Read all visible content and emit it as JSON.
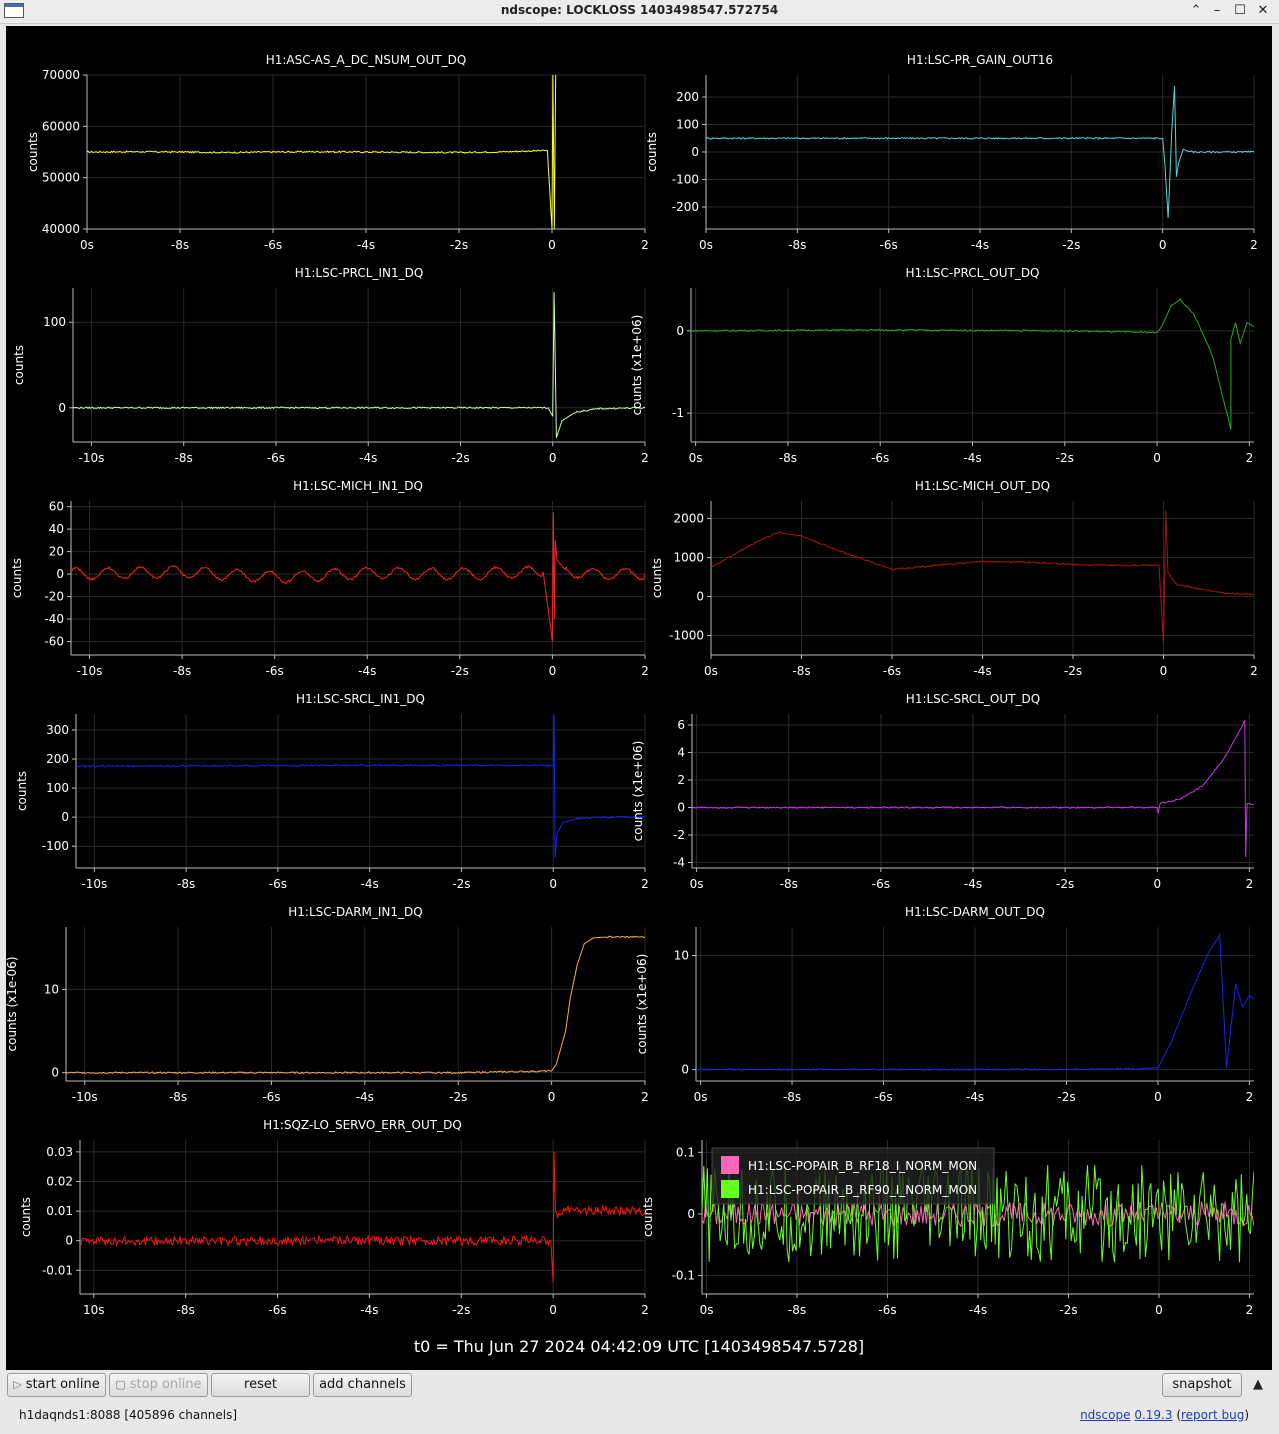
{
  "window": {
    "title": "ndscope: LOCKLOSS 1403498547.572754"
  },
  "t0_label": "t0 = Thu Jun 27 2024 04:42:09 UTC [1403498547.5728]",
  "buttons": {
    "start_online": "start online",
    "stop_online": "stop online",
    "reset": "reset",
    "add_channels": "add channels",
    "snapshot": "snapshot"
  },
  "status": {
    "server": "h1daqnds1:8088  [405896 channels]",
    "app": "ndscope",
    "version": "0.19.3",
    "bug_open": " (",
    "bug": "report bug",
    "bug_close": ")"
  },
  "chart_data": [
    {
      "type": "line",
      "title": "H1:ASC-AS_A_DC_NSUM_OUT_DQ",
      "ylabel": "counts",
      "xlim": [
        -10,
        2
      ],
      "ylim": [
        40000,
        70000
      ],
      "yticks": [
        40000,
        50000,
        60000,
        70000
      ],
      "xticks": [
        "0s",
        "-8s",
        "-6s",
        "-4s",
        "-2s",
        "0",
        "2"
      ],
      "color": "#ffff33",
      "series": [
        {
          "x": [
            -10,
            -9,
            -8,
            -7,
            -6,
            -5,
            -4,
            -3,
            -2,
            -1,
            -0.1,
            0,
            0.02,
            0.05,
            0.08
          ],
          "y": [
            55000,
            55050,
            55000,
            54900,
            55000,
            55050,
            55000,
            54950,
            54900,
            55050,
            55300,
            40000,
            70000,
            40000,
            70000
          ]
        }
      ]
    },
    {
      "type": "line",
      "title": "H1:LSC-PR_GAIN_OUT16",
      "ylabel": "counts",
      "xlim": [
        -10,
        2
      ],
      "ylim": [
        -280,
        280
      ],
      "yticks": [
        -200,
        -100,
        0,
        100,
        200
      ],
      "xticks": [
        "0s",
        "-8s",
        "-6s",
        "-4s",
        "-2s",
        "0",
        "2"
      ],
      "color": "#4fd6dc",
      "series": [
        {
          "x": [
            -10,
            -1,
            0,
            0.05,
            0.12,
            0.2,
            0.26,
            0.3,
            0.35,
            0.45,
            0.6,
            0.9,
            2
          ],
          "y": [
            50,
            50,
            50,
            -50,
            -240,
            80,
            240,
            -90,
            -40,
            10,
            0,
            0,
            0
          ]
        }
      ]
    },
    {
      "type": "line",
      "title": "H1:LSC-PRCL_IN1_DQ",
      "ylabel": "counts",
      "xlim": [
        -10.4,
        2
      ],
      "ylim": [
        -40,
        140
      ],
      "yticks": [
        0,
        100
      ],
      "xticks": [
        "-10s",
        "-8s",
        "-6s",
        "-4s",
        "-2s",
        "0",
        "2"
      ],
      "color": "#c8ffb0",
      "series": [
        {
          "x": [
            -10.4,
            -5,
            -0.1,
            0,
            0.03,
            0.08,
            0.2,
            0.5,
            1,
            2
          ],
          "y": [
            0,
            0,
            0,
            -10,
            135,
            -35,
            -15,
            -5,
            -1,
            0
          ]
        }
      ]
    },
    {
      "type": "line",
      "title": "H1:LSC-PRCL_OUT_DQ",
      "ylabel": "counts (x1e+06)",
      "xlim": [
        -10.1,
        2.1
      ],
      "ylim": [
        -1.35,
        0.52
      ],
      "yticks": [
        -1,
        0
      ],
      "xticks": [
        "0s",
        "-8s",
        "-6s",
        "-4s",
        "-2s",
        "0",
        "2"
      ],
      "color": "#22aa22",
      "series": [
        {
          "x": [
            -10.1,
            -6,
            -2,
            0,
            0.1,
            0.3,
            0.5,
            0.8,
            1.2,
            1.6,
            1.6,
            1.7,
            1.8,
            1.95,
            2.1
          ],
          "y": [
            0,
            0.01,
            0,
            -0.02,
            0.05,
            0.3,
            0.38,
            0.2,
            -0.3,
            -1.2,
            -0.1,
            0.1,
            -0.15,
            0.1,
            0.05
          ]
        }
      ]
    },
    {
      "type": "line",
      "title": "H1:LSC-MICH_IN1_DQ",
      "ylabel": "counts",
      "xlim": [
        -10.4,
        2
      ],
      "ylim": [
        -72,
        65
      ],
      "yticks": [
        -60,
        -40,
        -20,
        0,
        20,
        40,
        60
      ],
      "xticks": [
        "-10s",
        "-8s",
        "-6s",
        "-4s",
        "-2s",
        "0",
        "2"
      ],
      "color": "#ff2020",
      "series": [
        {
          "x": [
            -10.4,
            -8,
            -6,
            -4,
            -2,
            -0.2,
            0,
            0.02,
            0.04,
            0.06,
            0.1,
            0.3,
            0.8,
            2
          ],
          "y": [
            0,
            2,
            -3,
            1,
            0,
            2,
            -60,
            55,
            -40,
            30,
            12,
            3,
            0,
            0
          ]
        }
      ]
    },
    {
      "type": "line",
      "title": "H1:LSC-MICH_OUT_DQ",
      "ylabel": "counts",
      "xlim": [
        -10,
        2
      ],
      "ylim": [
        -1500,
        2450
      ],
      "yticks": [
        -1000,
        0,
        1000,
        2000
      ],
      "xticks": [
        "0s",
        "-8s",
        "-6s",
        "-4s",
        "-2s",
        "0",
        "2"
      ],
      "color": "#aa1111",
      "series": [
        {
          "x": [
            -10,
            -9,
            -8.5,
            -8,
            -7,
            -6,
            -5,
            -4,
            -3,
            -2,
            -1,
            -0.1,
            0,
            0.05,
            0.1,
            0.3,
            0.8,
            1.4,
            2
          ],
          "y": [
            750,
            1400,
            1650,
            1550,
            1100,
            700,
            800,
            900,
            880,
            820,
            800,
            800,
            -1200,
            2200,
            600,
            300,
            200,
            80,
            60
          ]
        }
      ]
    },
    {
      "type": "line",
      "title": "H1:LSC-SRCL_IN1_DQ",
      "ylabel": "counts",
      "xlim": [
        -10.4,
        2
      ],
      "ylim": [
        -175,
        355
      ],
      "yticks": [
        -100,
        0,
        100,
        200,
        300
      ],
      "xticks": [
        "-10s",
        "-8s",
        "-6s",
        "-4s",
        "-2s",
        "0",
        "2"
      ],
      "color": "#1a22ee",
      "series": [
        {
          "x": [
            -10.4,
            -5,
            -0.05,
            0,
            0.02,
            0.04,
            0.08,
            0.2,
            0.5,
            1,
            2
          ],
          "y": [
            175,
            178,
            178,
            175,
            350,
            -140,
            -60,
            -20,
            -5,
            0,
            0
          ]
        }
      ]
    },
    {
      "type": "line",
      "title": "H1:LSC-SRCL_OUT_DQ",
      "ylabel": "counts (x1e+06)",
      "xlim": [
        -10.1,
        2.1
      ],
      "ylim": [
        -4.4,
        6.8
      ],
      "yticks": [
        -4,
        -2,
        0,
        2,
        4,
        6
      ],
      "xticks": [
        "0s",
        "-8s",
        "-6s",
        "-4s",
        "-2s",
        "0",
        "2"
      ],
      "color": "#cc33ee",
      "series": [
        {
          "x": [
            -10.1,
            -2,
            0,
            0.02,
            0.06,
            0.5,
            1,
            1.5,
            1.9,
            1.92,
            1.95,
            2.1
          ],
          "y": [
            0,
            0,
            0,
            -0.4,
            0.3,
            0.6,
            1.6,
            3.8,
            6.3,
            -3.6,
            0.3,
            0.2
          ]
        }
      ]
    },
    {
      "type": "line",
      "title": "H1:LSC-DARM_IN1_DQ",
      "ylabel": "counts (x1e-06)",
      "xlim": [
        -10.4,
        2
      ],
      "ylim": [
        -1,
        17.5
      ],
      "yticks": [
        0,
        10
      ],
      "xticks": [
        "-10s",
        "-8s",
        "-6s",
        "-4s",
        "-2s",
        "0",
        "2"
      ],
      "color": "#ffaa44",
      "series": [
        {
          "x": [
            -10.4,
            -2,
            0,
            0.1,
            0.2,
            0.3,
            0.4,
            0.55,
            0.7,
            0.9,
            1.2,
            2
          ],
          "y": [
            0,
            0,
            0.2,
            1,
            3,
            5,
            9,
            13,
            15.5,
            16.2,
            16.3,
            16.3
          ]
        }
      ]
    },
    {
      "type": "line",
      "title": "H1:LSC-DARM_OUT_DQ",
      "ylabel": "counts (x1e+06)",
      "xlim": [
        -10.1,
        2.1
      ],
      "ylim": [
        -1,
        12.5
      ],
      "yticks": [
        0,
        10
      ],
      "xticks": [
        "0s",
        "-8s",
        "-6s",
        "-4s",
        "-2s",
        "0",
        "2"
      ],
      "color": "#1a22ee",
      "series": [
        {
          "x": [
            -10.1,
            -2,
            0,
            0.3,
            0.7,
            1.1,
            1.35,
            1.5,
            1.7,
            1.85,
            2,
            2.1
          ],
          "y": [
            0,
            0,
            0.1,
            2.5,
            6.5,
            10.2,
            11.8,
            0.2,
            7.5,
            5.5,
            6.5,
            6.2
          ]
        }
      ]
    },
    {
      "type": "line",
      "title": "H1:SQZ-LO_SERVO_ERR_OUT_DQ",
      "ylabel": "counts",
      "xlim": [
        -10.3,
        2
      ],
      "ylim": [
        -0.018,
        0.034
      ],
      "yticks": [
        -0.01,
        0,
        0.01,
        0.02,
        0.03
      ],
      "xticks": [
        "10s",
        "-8s",
        "-6s",
        "-4s",
        "-2s",
        "0",
        "2"
      ],
      "color": "#ff1111",
      "series": [
        {
          "x": [
            -10.3,
            -5,
            -0.05,
            0,
            0.02,
            0.05,
            0.1,
            0.4,
            0.5,
            2
          ],
          "y": [
            0,
            0,
            0,
            -0.014,
            0.03,
            0.01,
            0.009,
            0.011,
            0.01,
            0.01
          ]
        }
      ]
    },
    {
      "type": "line",
      "title": "",
      "ylabel": "counts",
      "xlim": [
        -10.1,
        2.1
      ],
      "ylim": [
        -0.13,
        0.12
      ],
      "yticks": [
        -0.1,
        0,
        0.1
      ],
      "xticks": [
        "0s",
        "-8s",
        "-6s",
        "-4s",
        "-2s",
        "0",
        "2"
      ],
      "legend": "top-left",
      "series": [
        {
          "name": "H1:LSC-POPAIR_B_RF18_I_NORM_MON",
          "color": "#ff66bb",
          "amplitude": 0.02
        },
        {
          "name": "H1:LSC-POPAIR_B_RF90_I_NORM_MON",
          "color": "#66ff22",
          "amplitude": 0.08
        }
      ]
    }
  ]
}
